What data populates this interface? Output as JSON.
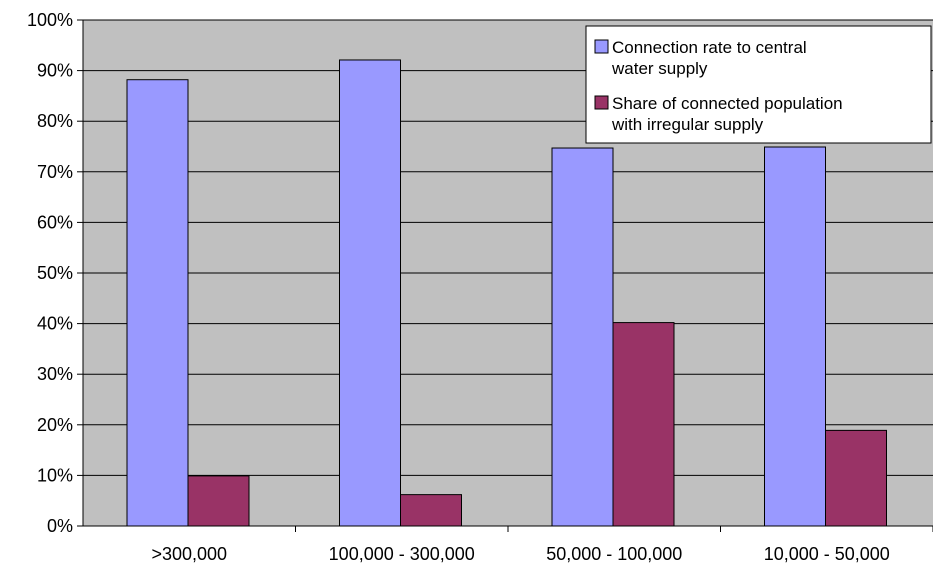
{
  "chart_data": {
    "type": "bar",
    "categories": [
      ">300,000",
      "100,000 - 300,000",
      "50,000 - 100,000",
      "10,000 - 50,000"
    ],
    "series": [
      {
        "name": "Connection rate to  central water supply",
        "legend_lines": [
          "Connection rate to  central",
          "water supply"
        ],
        "color": "#9999ff",
        "values": [
          0.882,
          0.921,
          0.747,
          0.749
        ]
      },
      {
        "name": "Share of connected population with irregular supply",
        "legend_lines": [
          "Share of connected population",
          "with irregular supply"
        ],
        "color": "#993366",
        "values": [
          0.099,
          0.062,
          0.402,
          0.189
        ]
      }
    ],
    "y_ticks": [
      "0%",
      "10%",
      "20%",
      "30%",
      "40%",
      "50%",
      "60%",
      "70%",
      "80%",
      "90%",
      "100%"
    ],
    "ylim": [
      0,
      1
    ],
    "plot_background": "#c0c0c0",
    "grid": true,
    "legend_position": "top-right",
    "title": "",
    "xlabel": "",
    "ylabel": ""
  }
}
